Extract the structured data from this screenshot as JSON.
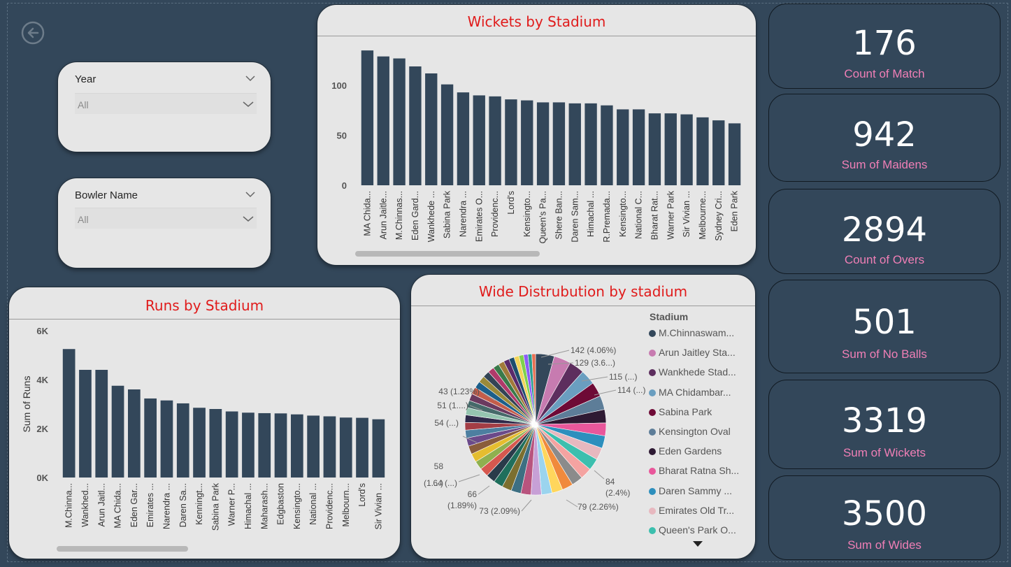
{
  "back_button_label": "",
  "slicers": {
    "year": {
      "title": "Year",
      "value": "All"
    },
    "bowler": {
      "title": "Bowler Name",
      "value": "All"
    }
  },
  "kpis": [
    {
      "value": "176",
      "label": "Count of Match"
    },
    {
      "value": "942",
      "label": "Sum of Maidens"
    },
    {
      "value": "2894",
      "label": "Count of Overs"
    },
    {
      "value": "501",
      "label": "Sum of No Balls"
    },
    {
      "value": "3319",
      "label": "Sum of Wickets"
    },
    {
      "value": "3500",
      "label": "Sum of Wides"
    }
  ],
  "colors": {
    "bar": "#33475a",
    "title": "#e01b1b",
    "kpi_label": "#f07fb6"
  },
  "chart_data": [
    {
      "type": "bar",
      "title": "Wickets by Stadium",
      "ylim": [
        0,
        140
      ],
      "yticks": [
        "0",
        "50",
        "100"
      ],
      "ytick_values": [
        0,
        50,
        100
      ],
      "categories": [
        "MA Chida...",
        "Arun Jaitle...",
        "M.Chinnas...",
        "Eden Gard...",
        "Wankhede ...",
        "Sabina Park",
        "Narendra ...",
        "Emirates O...",
        "Providenc...",
        "Lord's",
        "Kensingto...",
        "Queen's Pa...",
        "Shere Ban...",
        "Daren Sam...",
        "Himachal ...",
        "R.Premada...",
        "Kensingto...",
        "National C...",
        "Bharat Rat...",
        "Warner Park",
        "Sir Vivian ...",
        "Melbourne...",
        "Sydney Cri...",
        "Eden Park"
      ],
      "values": [
        135,
        129,
        127,
        119,
        112,
        101,
        93,
        90,
        89,
        86,
        85,
        83,
        83,
        82,
        82,
        80,
        76,
        76,
        72,
        72,
        71,
        68,
        65,
        62
      ]
    },
    {
      "type": "bar",
      "title": "Runs by Stadium",
      "ylabel": "Sum of Runs",
      "ylim": [
        0,
        6000
      ],
      "yticks": [
        "0K",
        "2K",
        "4K",
        "6K"
      ],
      "ytick_values": [
        0,
        2000,
        4000,
        6000
      ],
      "categories": [
        "M.Chinna...",
        "Wankhed...",
        "Arun Jaitl...",
        "MA Chida...",
        "Eden Gar...",
        "Emirates ...",
        "Narendra ...",
        "Daren Sa...",
        "Kenningt...",
        "Sabina Park",
        "Warner P...",
        "Himachal ...",
        "Maharash...",
        "Edgbaston",
        "Kensingto...",
        "National ...",
        "Providenc...",
        "Melbourn...",
        "Lord's",
        "Sir Vivian ..."
      ],
      "values": [
        5250,
        4400,
        4400,
        3750,
        3600,
        3230,
        3150,
        3030,
        2850,
        2800,
        2700,
        2650,
        2630,
        2620,
        2580,
        2530,
        2500,
        2450,
        2440,
        2380
      ]
    },
    {
      "type": "pie",
      "title": "Wide Distrubution by stadium",
      "legend_title": "Stadium",
      "legend": [
        {
          "name": "M.Chinnaswam...",
          "color": "#33475a"
        },
        {
          "name": "Arun Jaitley Sta...",
          "color": "#c77bb0"
        },
        {
          "name": "Wankhede Stad...",
          "color": "#5d2e5e"
        },
        {
          "name": "MA Chidambar...",
          "color": "#6a9ec0"
        },
        {
          "name": "Sabina Park",
          "color": "#6e0a36"
        },
        {
          "name": "Kensington Oval",
          "color": "#5d7d98"
        },
        {
          "name": "Eden Gardens",
          "color": "#2e1a33"
        },
        {
          "name": "Bharat Ratna Sh...",
          "color": "#e9579b"
        },
        {
          "name": "Daren Sammy ...",
          "color": "#2d8fbd"
        },
        {
          "name": "Emirates Old Tr...",
          "color": "#e7b8bf"
        },
        {
          "name": "Queen's Park O...",
          "color": "#3cbfae"
        }
      ],
      "slice_labels": [
        {
          "text": "142 (4.06%)"
        },
        {
          "text": "129 (3.6...)"
        },
        {
          "text": "115 (...)"
        },
        {
          "text": "114 (...)"
        },
        {
          "text": "84"
        },
        {
          "text": "(2.4%)"
        },
        {
          "text": "79 (2.26%)"
        },
        {
          "text": "73 (2.09%)"
        },
        {
          "text": "66"
        },
        {
          "text": "(1.89%)"
        },
        {
          "text": "64 (...)"
        },
        {
          "text": "58"
        },
        {
          "text": "(1....)"
        },
        {
          "text": "54 (...)"
        },
        {
          "text": "51 (1....)"
        },
        {
          "text": "43 (1.23%)"
        }
      ],
      "values": [
        142,
        129,
        115,
        114,
        110,
        106,
        102,
        98,
        95,
        92,
        90,
        88,
        86,
        84,
        82,
        80,
        79,
        77,
        75,
        73,
        71,
        70,
        68,
        66,
        65,
        64,
        62,
        60,
        58,
        57,
        56,
        55,
        54,
        53,
        52,
        51,
        50,
        48,
        46,
        45,
        43,
        40,
        38,
        35,
        33,
        30,
        28
      ],
      "slice_colors": [
        "#33475a",
        "#c77bb0",
        "#5d2e5e",
        "#6a9ec0",
        "#6e0a36",
        "#5d7d98",
        "#2e1a33",
        "#e9579b",
        "#2d8fbd",
        "#e7b8bf",
        "#3cbfae",
        "#f4a3a1",
        "#8b8b8b",
        "#f08a3c",
        "#ffd65c",
        "#9bd4ee",
        "#c7a0d6",
        "#b8547e",
        "#3d6f82",
        "#7c6f2f",
        "#1f6f5c",
        "#2a3b4a",
        "#d6584f",
        "#8fb04f",
        "#e5bd2f",
        "#8a5d3b",
        "#6b4a8a",
        "#4d7fa0",
        "#a33d45",
        "#2f2a4a",
        "#95c5b0",
        "#466a6a",
        "#6b3a5f",
        "#c45d4a",
        "#1c5f8a",
        "#9a8a3a",
        "#334455",
        "#b03a6a",
        "#3a7a4a",
        "#a17a3a",
        "#5a2a6a",
        "#1d4d6d",
        "#f2d45b",
        "#7fd14d",
        "#8b5cf6",
        "#2a9d8f",
        "#e76f51"
      ]
    }
  ]
}
